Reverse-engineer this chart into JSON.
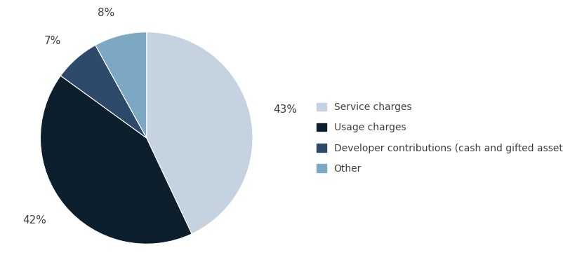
{
  "labels": [
    "Service charges",
    "Usage charges",
    "Developer contributions (cash and gifted assets)",
    "Other"
  ],
  "values": [
    43,
    42,
    7,
    8
  ],
  "colors": [
    "#c5d3e0",
    "#0d1f2d",
    "#2e4a6b",
    "#7da8c4"
  ],
  "pct_labels": [
    "43%",
    "42%",
    "7%",
    "8%"
  ],
  "legend_labels": [
    "Service charges",
    "Usage charges",
    "Developer contributions (cash and gifted assets)",
    "Other"
  ],
  "startangle": 90,
  "background_color": "#ffffff",
  "text_color": "#404040",
  "font_size": 11
}
